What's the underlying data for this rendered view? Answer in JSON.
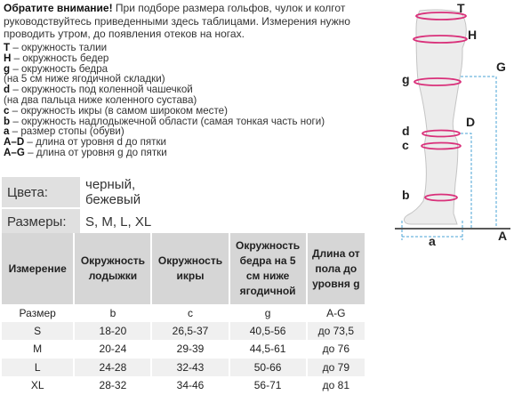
{
  "intro": {
    "lead": "Обратите внимание!",
    "text": " При подборе размера гольфов, чулок и колгот руководствуйтесь приведенными здесь таблицами. Измерения нужно проводить утром, до появления отеков на ногах."
  },
  "legend": [
    {
      "key": "T",
      "text": " – окружность талии"
    },
    {
      "key": "H",
      "text": " – окружность бедер"
    },
    {
      "key": "g",
      "text": " – окружность бедра"
    },
    {
      "key": "",
      "text": "(на 5 см ниже ягодичной складки)"
    },
    {
      "key": "d",
      "text": " – окружность под коленной чашечкой"
    },
    {
      "key": "",
      "text": "(на два пальца ниже коленного сустава)"
    },
    {
      "key": "c",
      "text": " – окружность икры (в самом широком месте)"
    },
    {
      "key": "b",
      "text": " – окружность надлодыжечной области (самая тонкая часть ноги)"
    },
    {
      "key": "a",
      "text": " – размер стопы (обуви)"
    },
    {
      "key": "A–D",
      "text": " – длина от уровня d до пятки"
    },
    {
      "key": "A–G",
      "text": " – длина от уровня g до пятки"
    }
  ],
  "colors": {
    "label": "Цвета:",
    "value": "черный, бежевый"
  },
  "sizes": {
    "label": "Размеры:",
    "value": "S, M, L, XL"
  },
  "table": {
    "headers": [
      "Измерение",
      "Окружность лодыжки",
      "Окружность икры",
      "Окружность бедра на 5 см ниже ягодичной",
      "Длина от пола до уровня g"
    ],
    "unit_row": [
      "Размер",
      "b",
      "c",
      "g",
      "A-G"
    ],
    "rows": [
      [
        "S",
        "18-20",
        "26,5-37",
        "40,5-56",
        "до 73,5"
      ],
      [
        "M",
        "20-24",
        "29-39",
        "44,5-61",
        "до 76"
      ],
      [
        "L",
        "24-28",
        "32-43",
        "50-66",
        "до 79"
      ],
      [
        "XL",
        "28-32",
        "34-46",
        "56-71",
        "до 81"
      ]
    ]
  },
  "diagram": {
    "labels": {
      "T": "T",
      "H": "H",
      "G": "G",
      "g": "g",
      "D": "D",
      "d": "d",
      "c": "c",
      "b": "b",
      "a": "a",
      "A": "A"
    },
    "accent": "#d9307a",
    "guide": "#4aa3d6"
  }
}
